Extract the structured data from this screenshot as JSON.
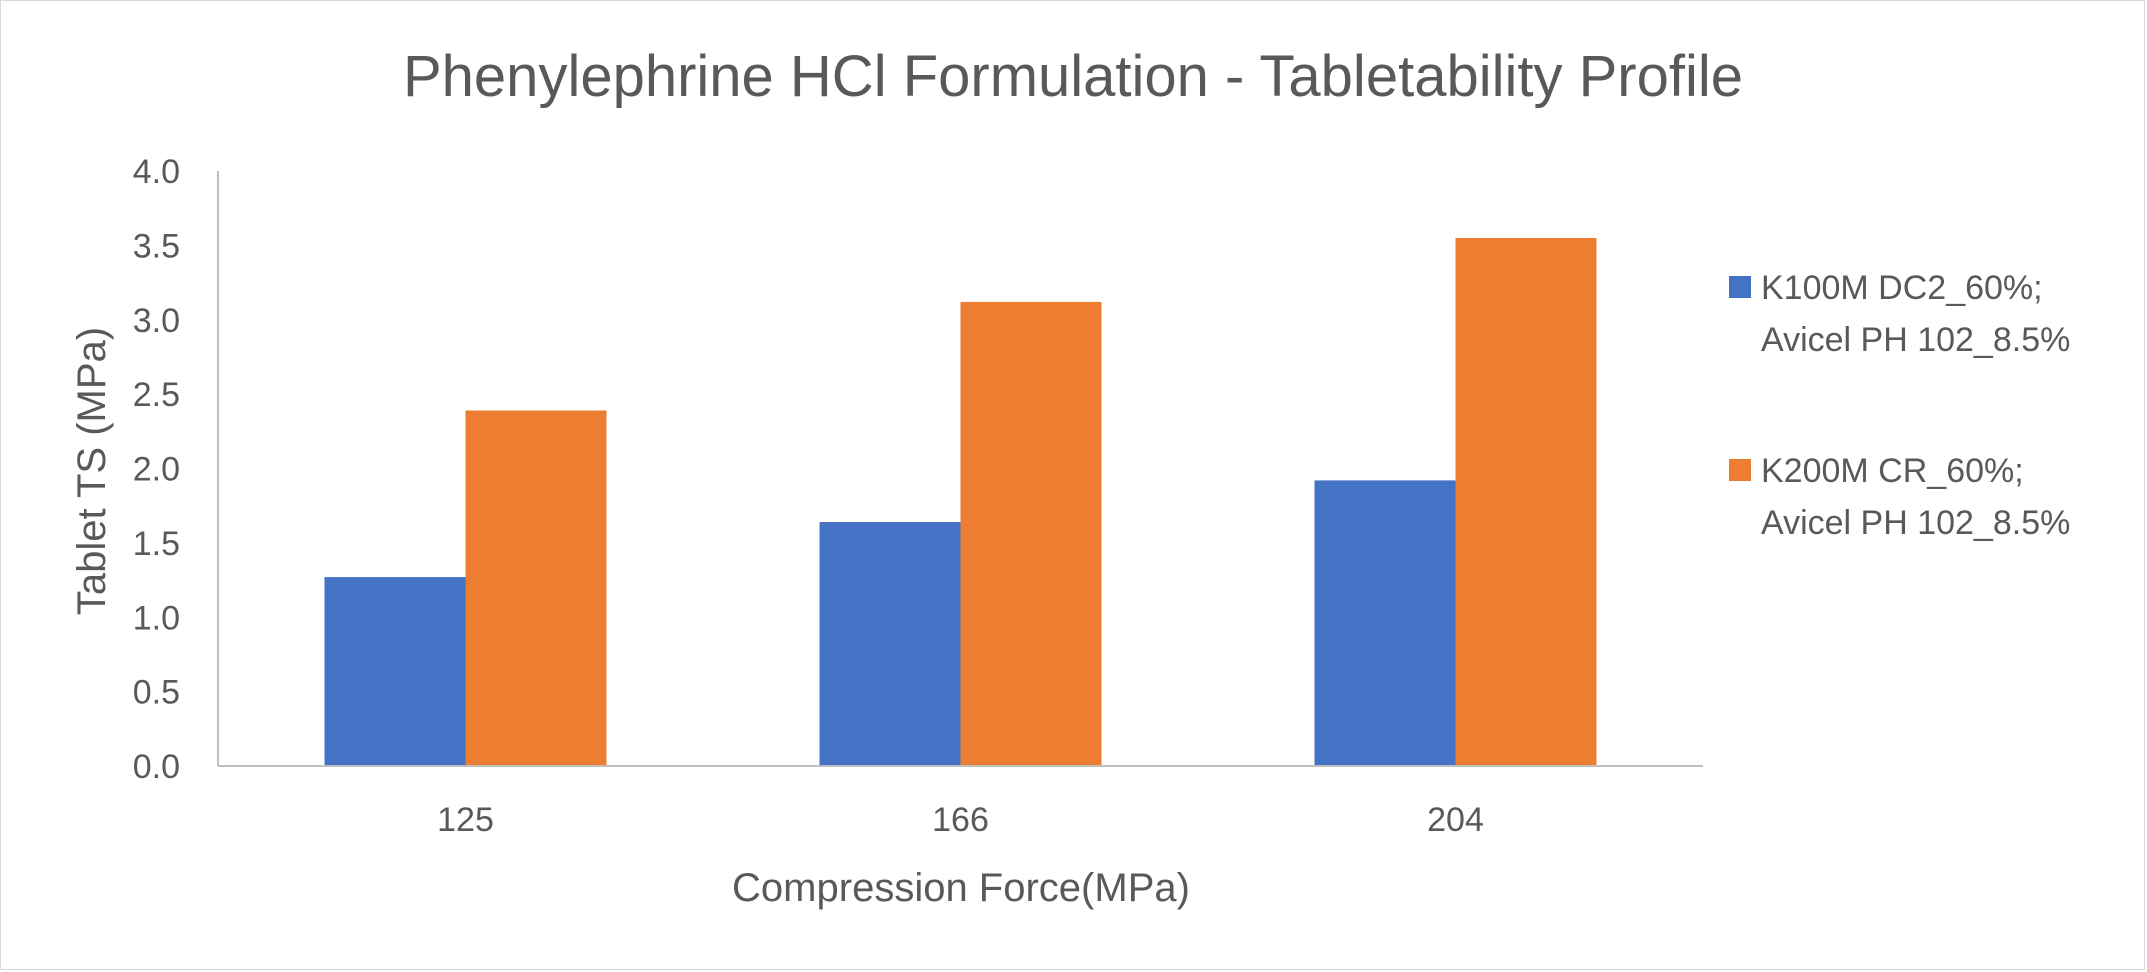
{
  "chart_data": {
    "type": "bar",
    "title": "Phenylephrine HCl Formulation - Tabletability Profile",
    "xlabel": "Compression Force(MPa)",
    "ylabel": "Tablet TS  (MPa)",
    "categories": [
      "125",
      "166",
      "204"
    ],
    "series": [
      {
        "name": "K100M DC2_60%; Avicel PH 102_8.5%",
        "legend_lines": [
          "K100M DC2_60%;",
          "Avicel PH 102_8.5%"
        ],
        "color": "#4472c4",
        "values": [
          1.27,
          1.64,
          1.92
        ]
      },
      {
        "name": "K200M CR_60%; Avicel PH 102_8.5%",
        "legend_lines": [
          "K200M CR_60%;",
          "Avicel PH 102_8.5%"
        ],
        "color": "#ed7d31",
        "values": [
          2.39,
          3.12,
          3.55
        ]
      }
    ],
    "ylim": [
      0,
      4
    ],
    "yticks": [
      "0.0",
      "0.5",
      "1.0",
      "1.5",
      "2.0",
      "2.5",
      "3.0",
      "3.5",
      "4.0"
    ],
    "grid": false,
    "legend_position": "right"
  }
}
